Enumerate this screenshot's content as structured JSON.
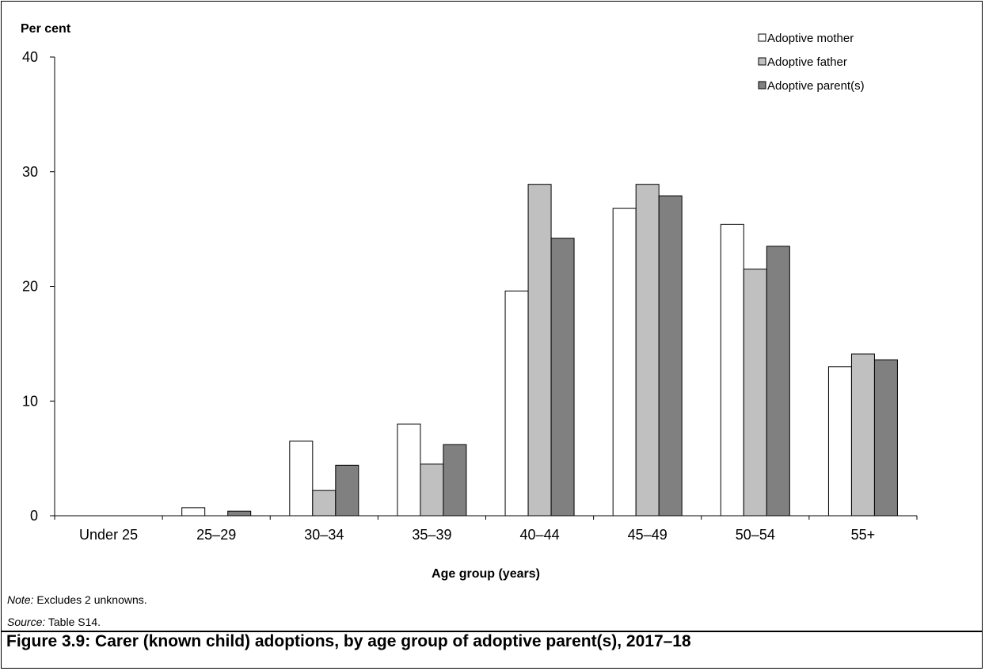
{
  "chart_data": {
    "type": "bar",
    "ylabel": "Per cent",
    "xlabel": "Age group (years)",
    "ylim": [
      0,
      40
    ],
    "yticks": [
      0,
      10,
      20,
      30,
      40
    ],
    "categories": [
      "Under 25",
      "25–29",
      "30–34",
      "35–39",
      "40–44",
      "45–49",
      "50–54",
      "55+"
    ],
    "series": [
      {
        "name": "Adoptive mother",
        "color": "#ffffff",
        "values": [
          0,
          0.7,
          6.5,
          8.0,
          19.6,
          26.8,
          25.4,
          13.0
        ]
      },
      {
        "name": "Adoptive father",
        "color": "#c0c0c0",
        "values": [
          0,
          0,
          2.2,
          4.5,
          28.9,
          28.9,
          21.5,
          14.1
        ]
      },
      {
        "name": "Adoptive parent(s)",
        "color": "#808080",
        "values": [
          0,
          0.4,
          4.4,
          6.2,
          24.2,
          27.9,
          23.5,
          13.6
        ]
      }
    ],
    "legend_position": "top-right",
    "grid": false
  },
  "notes": {
    "note_label": "Note:",
    "note_text": " Excludes 2 unknowns.",
    "source_label": "Source:",
    "source_text": " Table S14."
  },
  "caption": "Figure 3.9: Carer (known child) adoptions, by age group of adoptive parent(s), 2017–18"
}
